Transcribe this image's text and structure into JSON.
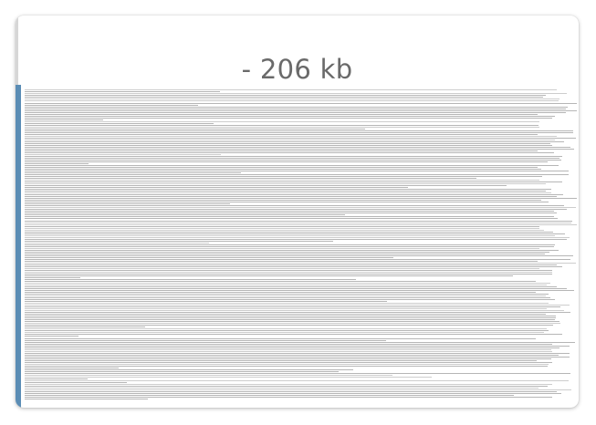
{
  "document": {
    "size_label": "- 206 kb"
  },
  "colors": {
    "accent": "#5b8db5",
    "text_lines": "#a9a9a9",
    "title": "#6a6a6a"
  }
}
